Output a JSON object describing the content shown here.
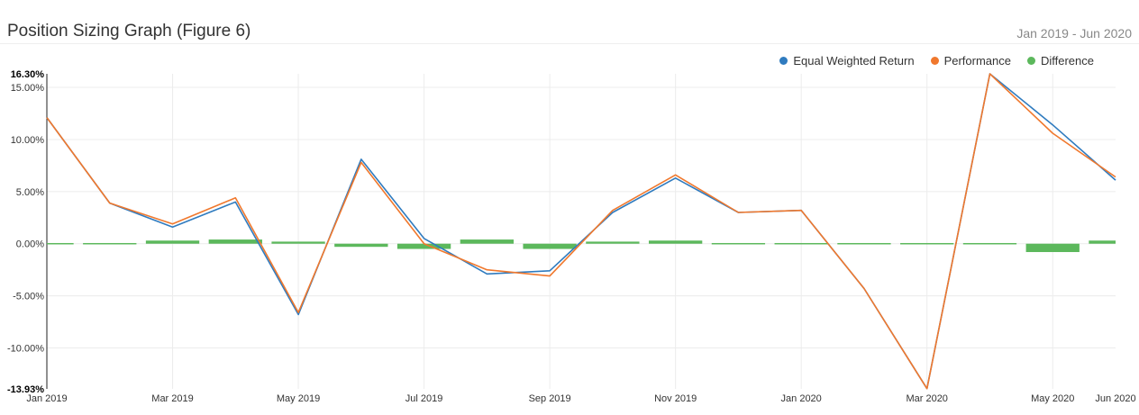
{
  "header": {
    "title": "Position Sizing Graph (Figure 6)",
    "date_range": "Jan 2019 - Jun 2020"
  },
  "colors": {
    "equal_weighted": "#2f7bbf",
    "performance": "#f0782d",
    "difference": "#5cb85c"
  },
  "chart_data": {
    "type": "line",
    "title": "Position Sizing Graph (Figure 6)",
    "ylim": [
      -13.93,
      16.3
    ],
    "y_ticks": [
      "16.30%",
      "15.00%",
      "10.00%",
      "5.00%",
      "0.00%",
      "-5.00%",
      "-10.00%",
      "-13.93%"
    ],
    "y_tick_values": [
      16.3,
      15,
      10,
      5,
      0,
      -5,
      -10,
      -13.93
    ],
    "x_tick_labels": [
      {
        "i": 0,
        "label": "Jan 2019"
      },
      {
        "i": 2,
        "label": "Mar 2019"
      },
      {
        "i": 4,
        "label": "May 2019"
      },
      {
        "i": 6,
        "label": "Jul 2019"
      },
      {
        "i": 8,
        "label": "Sep 2019"
      },
      {
        "i": 10,
        "label": "Nov 2019"
      },
      {
        "i": 12,
        "label": "Jan 2020"
      },
      {
        "i": 14,
        "label": "Mar 2020"
      },
      {
        "i": 16,
        "label": "May 2020"
      },
      {
        "i": 17,
        "label": "Jun 2020"
      }
    ],
    "legend_position": "top-right",
    "grid": true,
    "x": [
      "Jan 2019",
      "Feb 2019",
      "Mar 2019",
      "Apr 2019",
      "May 2019",
      "Jun 2019",
      "Jul 2019",
      "Aug 2019",
      "Sep 2019",
      "Oct 2019",
      "Nov 2019",
      "Dec 2019",
      "Jan 2020",
      "Feb 2020",
      "Mar 2020",
      "Apr 2020",
      "May 2020",
      "Jun 2020"
    ],
    "series": [
      {
        "name": "Equal Weighted Return",
        "kind": "line",
        "values": [
          12.1,
          3.9,
          1.6,
          4.0,
          -6.8,
          8.1,
          0.5,
          -2.9,
          -2.6,
          3.0,
          6.3,
          3.0,
          3.2,
          -4.3,
          -13.9,
          16.3,
          11.4,
          6.1
        ]
      },
      {
        "name": "Performance",
        "kind": "line",
        "values": [
          12.1,
          3.9,
          1.9,
          4.4,
          -6.6,
          7.8,
          0.0,
          -2.5,
          -3.1,
          3.2,
          6.6,
          3.0,
          3.2,
          -4.3,
          -13.9,
          16.3,
          10.6,
          6.4
        ]
      },
      {
        "name": "Difference",
        "kind": "bar",
        "values": [
          0.0,
          -0.1,
          0.3,
          0.4,
          0.2,
          -0.3,
          -0.5,
          0.4,
          -0.5,
          0.2,
          0.3,
          -0.1,
          -0.1,
          -0.1,
          -0.1,
          -0.1,
          -0.8,
          0.3
        ]
      }
    ]
  }
}
